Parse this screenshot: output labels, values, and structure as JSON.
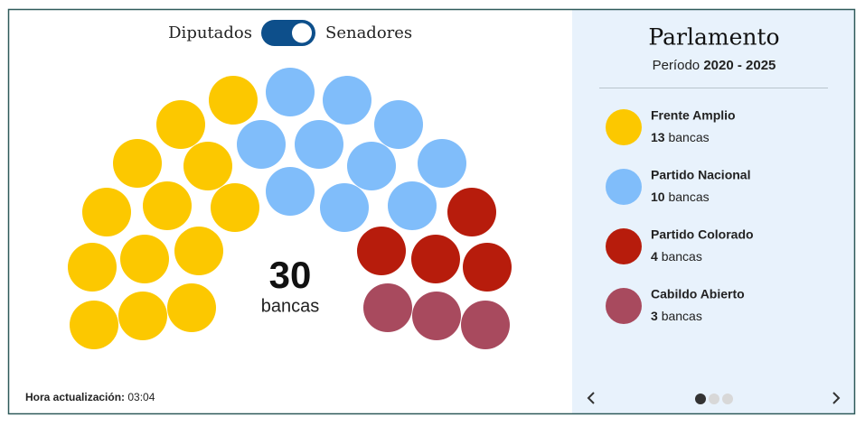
{
  "toggle": {
    "left": "Diputados",
    "right": "Senadores"
  },
  "total": 30,
  "seat_unit": "bancas",
  "panel": {
    "title": "Parlamento",
    "period_label": "Período",
    "period": "2020 - 2025"
  },
  "parties": [
    {
      "name": "Frente Amplio",
      "color": "#fcc800",
      "seats": 13
    },
    {
      "name": "Partido Nacional",
      "color": "#80bdfa",
      "seats": 10
    },
    {
      "name": "Partido Colorado",
      "color": "#b71c0c",
      "seats": 4
    },
    {
      "name": "Cabildo Abierto",
      "color": "#a84a5e",
      "seats": 3
    }
  ],
  "footer": {
    "label": "Hora actualización:",
    "time": "03:04"
  }
}
